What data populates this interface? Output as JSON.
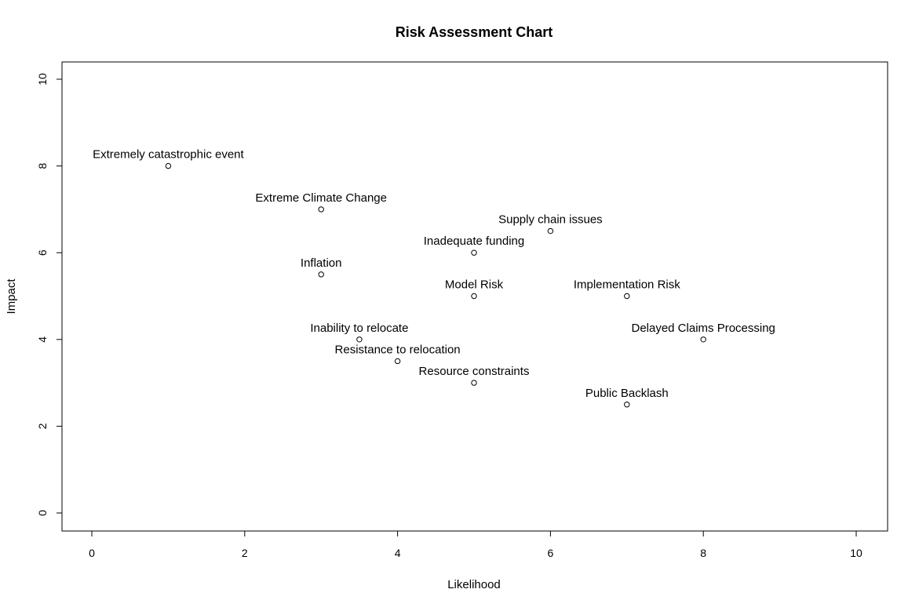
{
  "chart_data": {
    "type": "scatter",
    "title": "Risk Assessment Chart",
    "xlabel": "Likelihood",
    "ylabel": "Impact",
    "xlim": [
      0,
      10
    ],
    "ylim": [
      0,
      10
    ],
    "x_ticks": [
      0,
      2,
      4,
      6,
      8,
      10
    ],
    "y_ticks": [
      0,
      2,
      4,
      6,
      8,
      10
    ],
    "grid": false,
    "legend": "none",
    "points": [
      {
        "label": "Extremely catastrophic event",
        "x": 1,
        "y": 8
      },
      {
        "label": "Extreme Climate Change",
        "x": 3,
        "y": 7
      },
      {
        "label": "Supply chain issues",
        "x": 6,
        "y": 6.5
      },
      {
        "label": "Inadequate funding",
        "x": 5,
        "y": 6
      },
      {
        "label": "Inflation",
        "x": 3,
        "y": 5.5
      },
      {
        "label": "Model Risk",
        "x": 5,
        "y": 5
      },
      {
        "label": "Implementation Risk",
        "x": 7,
        "y": 5
      },
      {
        "label": "Inability to relocate",
        "x": 3.5,
        "y": 4
      },
      {
        "label": "Delayed Claims Processing",
        "x": 8,
        "y": 4
      },
      {
        "label": "Resistance to relocation",
        "x": 4,
        "y": 3.5
      },
      {
        "label": "Resource constraints",
        "x": 5,
        "y": 3
      },
      {
        "label": "Public Backlash",
        "x": 7,
        "y": 2.5
      }
    ]
  }
}
